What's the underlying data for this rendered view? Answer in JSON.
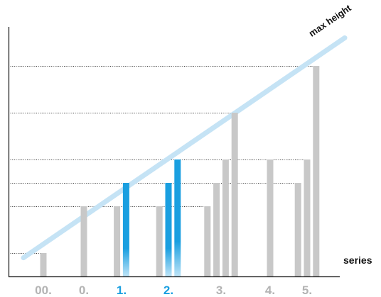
{
  "chart_data": {
    "type": "bar",
    "xlabel": "series",
    "ylim": [
      0,
      11
    ],
    "grid": "dotted horizontal lines at the top of each distinct bar height, starting at the y-axis",
    "reference_line": {
      "label": "max height",
      "from": {
        "position": -0.25,
        "value": 0.8
      },
      "to": {
        "position": 6.4,
        "value": 10.2
      },
      "color": "#c5e3f5"
    },
    "groups": [
      {
        "label": "00.",
        "highlight": false,
        "values": [
          1
        ]
      },
      {
        "label": "0.",
        "highlight": false,
        "values": [
          3
        ]
      },
      {
        "label": "1.",
        "highlight": true,
        "values": [
          3,
          4
        ]
      },
      {
        "label": "2.",
        "highlight": true,
        "values": [
          3,
          4,
          5
        ]
      },
      {
        "label": "3.",
        "highlight": false,
        "values": [
          3,
          4,
          5,
          7
        ]
      },
      {
        "label": "4.",
        "highlight": false,
        "values": [
          5
        ]
      },
      {
        "label": "5.",
        "highlight": false,
        "values": [
          4,
          5,
          9
        ]
      }
    ],
    "bar_roles": [
      {
        "group": "1.",
        "index": 1,
        "color": "blue"
      },
      {
        "group": "2.",
        "index": 1,
        "color": "blue"
      },
      {
        "group": "2.",
        "index": 2,
        "color": "blue"
      }
    ],
    "colors": {
      "bar": "#c8c8c8",
      "bar_highlight": "#1a9fe0",
      "bar_highlight_fade": "#bfe4f7",
      "tick": "#b3b3b3",
      "tick_highlight": "#1a9fe0",
      "axis": "#111111",
      "grid": "#333333"
    }
  }
}
